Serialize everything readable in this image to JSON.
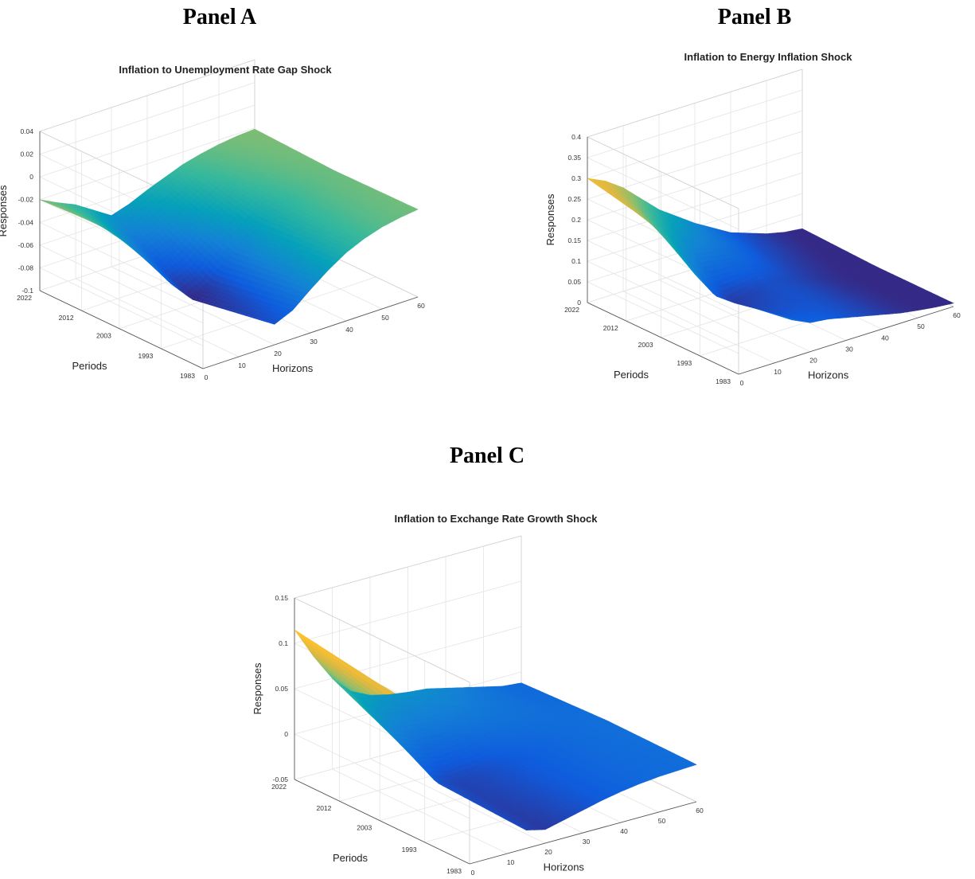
{
  "panels": [
    {
      "label": "Panel A"
    },
    {
      "label": "Panel B"
    },
    {
      "label": "Panel C"
    }
  ],
  "chart_data": [
    {
      "type": "surface",
      "title": "Inflation to Unemployment Rate Gap Shock",
      "xlabel": "Horizons",
      "ylabel": "Periods",
      "zlabel": "Responses",
      "x_ticks": [
        "0",
        "10",
        "20",
        "30",
        "40",
        "50",
        "60"
      ],
      "y_ticks": [
        "2022",
        "2012",
        "2003",
        "1993",
        "1983"
      ],
      "z_ticks": [
        "0.04",
        "0.02",
        "0",
        "-0.02",
        "-0.04",
        "-0.06",
        "-0.08",
        "-0.1"
      ],
      "xlim": [
        0,
        60
      ],
      "ylim": [
        1983,
        2022
      ],
      "zlim": [
        -0.1,
        0.04
      ],
      "colormap": "parula",
      "series": [
        {
          "period": 2022,
          "horizons": [
            0,
            5,
            10,
            15,
            20,
            25,
            30,
            35,
            40,
            45,
            50,
            55,
            60
          ],
          "values": [
            -0.02,
            -0.028,
            -0.035,
            -0.045,
            -0.055,
            -0.05,
            -0.043,
            -0.037,
            -0.031,
            -0.027,
            -0.024,
            -0.022,
            -0.021
          ]
        },
        {
          "period": 2003,
          "horizons": [
            0,
            5,
            10,
            15,
            20,
            25,
            30,
            35,
            40,
            45,
            50,
            55,
            60
          ],
          "values": [
            -0.016,
            -0.032,
            -0.055,
            -0.078,
            -0.095,
            -0.088,
            -0.072,
            -0.058,
            -0.045,
            -0.036,
            -0.03,
            -0.026,
            -0.024
          ]
        },
        {
          "period": 1983,
          "horizons": [
            0,
            5,
            10,
            15,
            20,
            25,
            30,
            35,
            40,
            45,
            50,
            55,
            60
          ],
          "values": [
            -0.015,
            -0.03,
            -0.05,
            -0.068,
            -0.082,
            -0.075,
            -0.062,
            -0.05,
            -0.04,
            -0.033,
            -0.028,
            -0.025,
            -0.023
          ]
        }
      ]
    },
    {
      "type": "surface",
      "title": "Inflation to Energy Inflation Shock",
      "xlabel": "Horizons",
      "ylabel": "Periods",
      "zlabel": "Responses",
      "x_ticks": [
        "0",
        "10",
        "20",
        "30",
        "40",
        "50",
        "60"
      ],
      "y_ticks": [
        "2022",
        "2012",
        "2003",
        "1993",
        "1983"
      ],
      "z_ticks": [
        "0.4",
        "0.35",
        "0.3",
        "0.25",
        "0.2",
        "0.15",
        "0.1",
        "0.05",
        "0"
      ],
      "xlim": [
        0,
        60
      ],
      "ylim": [
        1983,
        2022
      ],
      "zlim": [
        0,
        0.4
      ],
      "colormap": "parula",
      "series": [
        {
          "period": 2022,
          "horizons": [
            0,
            5,
            10,
            15,
            20,
            25,
            30,
            35,
            40,
            45,
            50,
            55,
            60
          ],
          "values": [
            0.3,
            0.28,
            0.25,
            0.21,
            0.17,
            0.14,
            0.11,
            0.085,
            0.06,
            0.045,
            0.03,
            0.02,
            0.015
          ]
        },
        {
          "period": 2003,
          "horizons": [
            0,
            5,
            10,
            15,
            20,
            25,
            30,
            35,
            40,
            45,
            50,
            55,
            60
          ],
          "values": [
            0.26,
            0.2,
            0.12,
            0.06,
            0.03,
            0.04,
            0.05,
            0.045,
            0.035,
            0.025,
            0.018,
            0.012,
            0.008
          ]
        },
        {
          "period": 1983,
          "horizons": [
            0,
            5,
            10,
            15,
            20,
            25,
            30,
            35,
            40,
            45,
            50,
            55,
            60
          ],
          "values": [
            0.29,
            0.22,
            0.14,
            0.09,
            0.07,
            0.065,
            0.055,
            0.045,
            0.035,
            0.025,
            0.018,
            0.012,
            0.008
          ]
        }
      ]
    },
    {
      "type": "surface",
      "title": "Inflation to Exchange Rate Growth Shock",
      "xlabel": "Horizons",
      "ylabel": "Periods",
      "zlabel": "Responses",
      "x_ticks": [
        "0",
        "10",
        "20",
        "30",
        "40",
        "50",
        "60"
      ],
      "y_ticks": [
        "2022",
        "2012",
        "2003",
        "1993",
        "1983"
      ],
      "z_ticks": [
        "0.15",
        "0.1",
        "0.05",
        "0",
        "-0.05"
      ],
      "xlim": [
        0,
        60
      ],
      "ylim": [
        1983,
        2022
      ],
      "zlim": [
        -0.05,
        0.15
      ],
      "colormap": "parula",
      "series": [
        {
          "period": 2022,
          "horizons": [
            0,
            5,
            10,
            15,
            20,
            25,
            30,
            35,
            40,
            45,
            50,
            55,
            60
          ],
          "values": [
            0.115,
            0.08,
            0.05,
            0.03,
            0.02,
            0.015,
            0.012,
            0.01,
            0.005,
            0.0,
            -0.005,
            -0.01,
            -0.012
          ]
        },
        {
          "period": 2003,
          "horizons": [
            0,
            5,
            10,
            15,
            20,
            25,
            30,
            35,
            40,
            45,
            50,
            55,
            60
          ],
          "values": [
            0.1,
            0.05,
            0.005,
            -0.025,
            -0.03,
            -0.028,
            -0.024,
            -0.02,
            -0.016,
            -0.013,
            -0.01,
            -0.009,
            -0.008
          ]
        },
        {
          "period": 1983,
          "horizons": [
            0,
            5,
            10,
            15,
            20,
            25,
            30,
            35,
            40,
            45,
            50,
            55,
            60
          ],
          "values": [
            0.09,
            0.04,
            -0.005,
            -0.03,
            -0.035,
            -0.03,
            -0.025,
            -0.02,
            -0.016,
            -0.013,
            -0.011,
            -0.01,
            -0.009
          ]
        }
      ]
    }
  ]
}
